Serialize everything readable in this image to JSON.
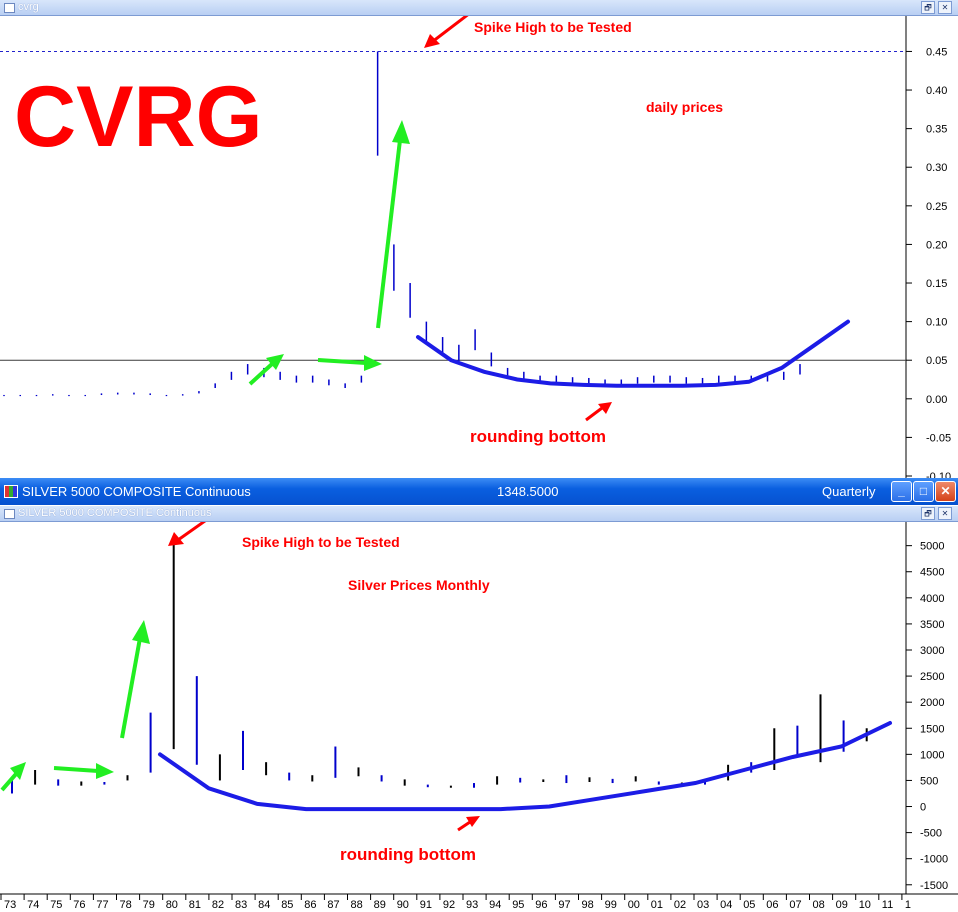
{
  "top_window": {
    "title": "cvrg",
    "restore_label": "🗗",
    "close_label": "✕"
  },
  "main_bar": {
    "title": "SILVER 5000 COMPOSITE Continuous",
    "price": "1348.5000",
    "period": "Quarterly",
    "min_label": "_",
    "max_label": "□",
    "close_label": "✕"
  },
  "bottom_window": {
    "title": "SILVER 5000 COMPOSITE Continuous",
    "restore_label": "🗗",
    "close_label": "✕"
  },
  "colors": {
    "annotation_red": "#ff0000",
    "arrow_green": "#22ee22",
    "curve_blue": "#1c1ce6",
    "bar_blue": "#0000cc",
    "bar_black": "#000000"
  },
  "chart_data": [
    {
      "type": "bar",
      "title": "CVRG",
      "subtitle": "daily prices",
      "ylim": [
        -0.1,
        0.47
      ],
      "y_ticks": [
        "-0.10",
        "-0.05",
        "0.00",
        "0.05",
        "0.10",
        "0.15",
        "0.20",
        "0.25",
        "0.30",
        "0.35",
        "0.40",
        "0.45"
      ],
      "y_tick_values": [
        -0.1,
        -0.05,
        0.0,
        0.05,
        0.1,
        0.15,
        0.2,
        0.25,
        0.3,
        0.35,
        0.4,
        0.45
      ],
      "reference_lines": [
        0.45,
        0.05
      ],
      "annotations": [
        "Spike High to be Tested",
        "rounding bottom"
      ],
      "series": [
        {
          "values": [
            0.005,
            0.005,
            0.005,
            0.006,
            0.005,
            0.005,
            0.007,
            0.008,
            0.008,
            0.007,
            0.005,
            0.006,
            0.01,
            0.02,
            0.035,
            0.045,
            0.04,
            0.035,
            0.03,
            0.03,
            0.025,
            0.02,
            0.03,
            0.45,
            0.2,
            0.15,
            0.1,
            0.08,
            0.07,
            0.09,
            0.06,
            0.04,
            0.035,
            0.03,
            0.03,
            0.028,
            0.027,
            0.025,
            0.025,
            0.028,
            0.03,
            0.03,
            0.028,
            0.027,
            0.03,
            0.03,
            0.03,
            0.032,
            0.035,
            0.045
          ]
        }
      ],
      "trend_curve": [
        0.08,
        0.05,
        0.035,
        0.025,
        0.02,
        0.018,
        0.017,
        0.017,
        0.017,
        0.018,
        0.022,
        0.04,
        0.07,
        0.1
      ]
    },
    {
      "type": "bar",
      "title": "Silver Prices Monthly",
      "ylim": [
        -1600,
        5300
      ],
      "y_ticks": [
        "-1500",
        "-1000",
        "-500",
        "0",
        "500",
        "1000",
        "1500",
        "2000",
        "2500",
        "3000",
        "3500",
        "4000",
        "4500",
        "5000"
      ],
      "y_tick_values": [
        -1500,
        -1000,
        -500,
        0,
        500,
        1000,
        1500,
        2000,
        2500,
        3000,
        3500,
        4000,
        4500,
        5000
      ],
      "x_tick_labels": [
        "73",
        "74",
        "75",
        "76",
        "77",
        "78",
        "79",
        "80",
        "81",
        "82",
        "83",
        "84",
        "85",
        "86",
        "87",
        "88",
        "89",
        "90",
        "91",
        "92",
        "93",
        "94",
        "95",
        "96",
        "97",
        "98",
        "99",
        "00",
        "01",
        "02",
        "03",
        "04",
        "05",
        "06",
        "07",
        "08",
        "09",
        "10",
        "11",
        "1"
      ],
      "annotations": [
        "Spike High to be Tested",
        "rounding bottom"
      ],
      "series": [
        {
          "x": [
            "73",
            "74",
            "75",
            "76",
            "77",
            "78",
            "79",
            "80",
            "81",
            "82",
            "83",
            "84",
            "85",
            "86",
            "87",
            "88",
            "89",
            "90",
            "91",
            "92",
            "93",
            "94",
            "95",
            "96",
            "97",
            "98",
            "99",
            "00",
            "01",
            "02",
            "03",
            "04",
            "05",
            "06",
            "07",
            "08",
            "09",
            "10"
          ],
          "high": [
            500,
            700,
            520,
            480,
            470,
            600,
            1800,
            5050,
            2500,
            1000,
            1450,
            850,
            650,
            600,
            1150,
            750,
            600,
            520,
            420,
            400,
            450,
            580,
            550,
            520,
            600,
            560,
            530,
            580,
            480,
            460,
            500,
            800,
            850,
            1500,
            1550,
            2150,
            1650,
            1500
          ],
          "low": [
            250,
            420,
            400,
            400,
            420,
            500,
            650,
            1100,
            800,
            500,
            700,
            600,
            500,
            480,
            550,
            580,
            480,
            400,
            370,
            360,
            360,
            420,
            460,
            470,
            450,
            470,
            450,
            480,
            420,
            400,
            420,
            500,
            650,
            700,
            1000,
            850,
            1050,
            1250
          ]
        }
      ],
      "trend_curve": [
        1000,
        350,
        50,
        -50,
        -50,
        -50,
        -50,
        -50,
        0,
        150,
        300,
        450,
        700,
        950,
        1150,
        1600
      ]
    }
  ]
}
